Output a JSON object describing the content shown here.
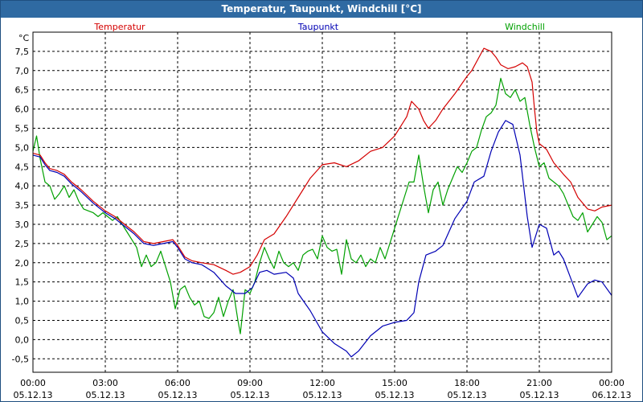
{
  "window": {
    "title": "Temperatur, Taupunkt, Windchill [°C]"
  },
  "colors": {
    "titlebar": "#2f6aa2",
    "temperature": "#d40000",
    "dewpoint": "#0000b4",
    "windchill": "#00a000",
    "grid": "#000000"
  },
  "chart_data": {
    "type": "line",
    "unit_label": "°C",
    "ylim": [
      -0.85,
      8.0
    ],
    "y_ticks": [
      "7,5",
      "7,0",
      "6,5",
      "6,0",
      "5,5",
      "5,0",
      "4,5",
      "4,0",
      "3,5",
      "3,0",
      "2,5",
      "2,0",
      "1,5",
      "1,0",
      "0,5",
      "0,0",
      "-0,5"
    ],
    "y_tick_values": [
      7.5,
      7.0,
      6.5,
      6.0,
      5.5,
      5.0,
      4.5,
      4.0,
      3.5,
      3.0,
      2.5,
      2.0,
      1.5,
      1.0,
      0.5,
      0.0,
      -0.5
    ],
    "x_ticks": [
      {
        "time": "00:00",
        "date": "05.12.13"
      },
      {
        "time": "03:00",
        "date": "05.12.13"
      },
      {
        "time": "06:00",
        "date": "05.12.13"
      },
      {
        "time": "09:00",
        "date": "05.12.13"
      },
      {
        "time": "12:00",
        "date": "05.12.13"
      },
      {
        "time": "15:00",
        "date": "05.12.13"
      },
      {
        "time": "18:00",
        "date": "05.12.13"
      },
      {
        "time": "21:00",
        "date": "05.12.13"
      },
      {
        "time": "00:00",
        "date": "06.12.13"
      }
    ],
    "x_tick_hours": [
      0,
      3,
      6,
      9,
      12,
      15,
      18,
      21,
      24
    ],
    "xlim_hours": [
      0,
      24
    ],
    "grid": true,
    "series": [
      {
        "name": "Temperatur",
        "color": "#d40000",
        "points": [
          [
            0.0,
            4.85
          ],
          [
            0.3,
            4.8
          ],
          [
            0.5,
            4.6
          ],
          [
            0.7,
            4.45
          ],
          [
            1.0,
            4.4
          ],
          [
            1.3,
            4.3
          ],
          [
            1.6,
            4.1
          ],
          [
            2.0,
            3.9
          ],
          [
            2.5,
            3.6
          ],
          [
            3.0,
            3.35
          ],
          [
            3.4,
            3.2
          ],
          [
            3.8,
            3.0
          ],
          [
            4.2,
            2.8
          ],
          [
            4.6,
            2.55
          ],
          [
            5.0,
            2.5
          ],
          [
            5.4,
            2.55
          ],
          [
            5.8,
            2.6
          ],
          [
            6.0,
            2.45
          ],
          [
            6.3,
            2.15
          ],
          [
            6.6,
            2.05
          ],
          [
            7.0,
            2.0
          ],
          [
            7.5,
            1.95
          ],
          [
            8.0,
            1.8
          ],
          [
            8.3,
            1.7
          ],
          [
            8.6,
            1.75
          ],
          [
            9.0,
            1.9
          ],
          [
            9.3,
            2.2
          ],
          [
            9.6,
            2.6
          ],
          [
            10.0,
            2.75
          ],
          [
            10.5,
            3.2
          ],
          [
            11.0,
            3.7
          ],
          [
            11.5,
            4.2
          ],
          [
            12.0,
            4.55
          ],
          [
            12.5,
            4.6
          ],
          [
            13.0,
            4.5
          ],
          [
            13.5,
            4.65
          ],
          [
            14.0,
            4.9
          ],
          [
            14.5,
            5.0
          ],
          [
            15.0,
            5.3
          ],
          [
            15.5,
            5.8
          ],
          [
            15.7,
            6.2
          ],
          [
            16.0,
            6.0
          ],
          [
            16.2,
            5.7
          ],
          [
            16.4,
            5.5
          ],
          [
            16.7,
            5.7
          ],
          [
            17.0,
            6.0
          ],
          [
            17.5,
            6.4
          ],
          [
            18.0,
            6.85
          ],
          [
            18.2,
            7.0
          ],
          [
            18.5,
            7.35
          ],
          [
            18.7,
            7.58
          ],
          [
            19.0,
            7.5
          ],
          [
            19.2,
            7.35
          ],
          [
            19.4,
            7.15
          ],
          [
            19.7,
            7.05
          ],
          [
            20.0,
            7.1
          ],
          [
            20.3,
            7.2
          ],
          [
            20.5,
            7.1
          ],
          [
            20.7,
            6.7
          ],
          [
            20.8,
            6.0
          ],
          [
            20.9,
            5.4
          ],
          [
            21.0,
            5.1
          ],
          [
            21.3,
            4.95
          ],
          [
            21.6,
            4.6
          ],
          [
            22.0,
            4.3
          ],
          [
            22.3,
            4.1
          ],
          [
            22.6,
            3.7
          ],
          [
            23.0,
            3.4
          ],
          [
            23.3,
            3.35
          ],
          [
            23.6,
            3.45
          ],
          [
            24.0,
            3.5
          ]
        ]
      },
      {
        "name": "Taupunkt",
        "color": "#0000b4",
        "points": [
          [
            0.0,
            4.8
          ],
          [
            0.3,
            4.75
          ],
          [
            0.5,
            4.55
          ],
          [
            0.7,
            4.4
          ],
          [
            1.0,
            4.35
          ],
          [
            1.3,
            4.25
          ],
          [
            1.6,
            4.05
          ],
          [
            2.0,
            3.85
          ],
          [
            2.5,
            3.55
          ],
          [
            3.0,
            3.3
          ],
          [
            3.4,
            3.15
          ],
          [
            3.8,
            2.95
          ],
          [
            4.2,
            2.75
          ],
          [
            4.6,
            2.5
          ],
          [
            5.0,
            2.45
          ],
          [
            5.4,
            2.5
          ],
          [
            5.8,
            2.55
          ],
          [
            6.0,
            2.4
          ],
          [
            6.3,
            2.1
          ],
          [
            6.6,
            2.0
          ],
          [
            7.0,
            1.95
          ],
          [
            7.5,
            1.75
          ],
          [
            8.0,
            1.4
          ],
          [
            8.4,
            1.2
          ],
          [
            8.8,
            1.2
          ],
          [
            9.1,
            1.35
          ],
          [
            9.4,
            1.75
          ],
          [
            9.7,
            1.8
          ],
          [
            10.0,
            1.7
          ],
          [
            10.5,
            1.75
          ],
          [
            10.8,
            1.6
          ],
          [
            11.0,
            1.2
          ],
          [
            11.5,
            0.75
          ],
          [
            12.0,
            0.2
          ],
          [
            12.5,
            -0.1
          ],
          [
            13.0,
            -0.3
          ],
          [
            13.2,
            -0.45
          ],
          [
            13.5,
            -0.3
          ],
          [
            14.0,
            0.1
          ],
          [
            14.5,
            0.35
          ],
          [
            15.0,
            0.45
          ],
          [
            15.5,
            0.5
          ],
          [
            15.8,
            0.7
          ],
          [
            16.0,
            1.5
          ],
          [
            16.3,
            2.2
          ],
          [
            16.7,
            2.3
          ],
          [
            17.0,
            2.45
          ],
          [
            17.5,
            3.15
          ],
          [
            18.0,
            3.6
          ],
          [
            18.3,
            4.1
          ],
          [
            18.7,
            4.25
          ],
          [
            19.0,
            4.9
          ],
          [
            19.3,
            5.4
          ],
          [
            19.6,
            5.7
          ],
          [
            19.9,
            5.6
          ],
          [
            20.2,
            4.8
          ],
          [
            20.5,
            3.2
          ],
          [
            20.7,
            2.4
          ],
          [
            21.0,
            3.0
          ],
          [
            21.3,
            2.9
          ],
          [
            21.6,
            2.2
          ],
          [
            21.8,
            2.3
          ],
          [
            22.0,
            2.1
          ],
          [
            22.3,
            1.6
          ],
          [
            22.6,
            1.1
          ],
          [
            23.0,
            1.45
          ],
          [
            23.3,
            1.55
          ],
          [
            23.6,
            1.5
          ],
          [
            24.0,
            1.15
          ]
        ]
      },
      {
        "name": "Windchill",
        "color": "#00a000",
        "points": [
          [
            0.0,
            4.9
          ],
          [
            0.15,
            5.3
          ],
          [
            0.3,
            4.7
          ],
          [
            0.5,
            4.1
          ],
          [
            0.7,
            4.0
          ],
          [
            0.9,
            3.65
          ],
          [
            1.1,
            3.8
          ],
          [
            1.3,
            4.0
          ],
          [
            1.5,
            3.7
          ],
          [
            1.7,
            3.9
          ],
          [
            1.9,
            3.6
          ],
          [
            2.1,
            3.4
          ],
          [
            2.3,
            3.35
          ],
          [
            2.5,
            3.3
          ],
          [
            2.7,
            3.2
          ],
          [
            2.9,
            3.3
          ],
          [
            3.1,
            3.2
          ],
          [
            3.3,
            3.1
          ],
          [
            3.5,
            3.2
          ],
          [
            3.7,
            3.0
          ],
          [
            3.9,
            2.8
          ],
          [
            4.1,
            2.6
          ],
          [
            4.3,
            2.4
          ],
          [
            4.5,
            1.9
          ],
          [
            4.7,
            2.2
          ],
          [
            4.9,
            1.9
          ],
          [
            5.1,
            2.0
          ],
          [
            5.3,
            2.3
          ],
          [
            5.5,
            1.9
          ],
          [
            5.7,
            1.5
          ],
          [
            5.9,
            0.8
          ],
          [
            6.1,
            1.3
          ],
          [
            6.3,
            1.4
          ],
          [
            6.5,
            1.1
          ],
          [
            6.7,
            0.9
          ],
          [
            6.9,
            1.0
          ],
          [
            7.1,
            0.6
          ],
          [
            7.3,
            0.55
          ],
          [
            7.5,
            0.7
          ],
          [
            7.7,
            1.1
          ],
          [
            7.9,
            0.6
          ],
          [
            8.1,
            1.0
          ],
          [
            8.3,
            1.3
          ],
          [
            8.5,
            0.5
          ],
          [
            8.6,
            0.15
          ],
          [
            8.8,
            1.3
          ],
          [
            9.0,
            1.2
          ],
          [
            9.2,
            1.5
          ],
          [
            9.4,
            2.0
          ],
          [
            9.6,
            2.4
          ],
          [
            9.8,
            2.1
          ],
          [
            10.0,
            1.85
          ],
          [
            10.2,
            2.3
          ],
          [
            10.4,
            2.0
          ],
          [
            10.6,
            1.9
          ],
          [
            10.8,
            2.0
          ],
          [
            11.0,
            1.8
          ],
          [
            11.2,
            2.2
          ],
          [
            11.4,
            2.3
          ],
          [
            11.6,
            2.35
          ],
          [
            11.8,
            2.1
          ],
          [
            12.0,
            2.7
          ],
          [
            12.2,
            2.4
          ],
          [
            12.4,
            2.3
          ],
          [
            12.6,
            2.35
          ],
          [
            12.8,
            1.7
          ],
          [
            13.0,
            2.6
          ],
          [
            13.2,
            2.1
          ],
          [
            13.4,
            2.0
          ],
          [
            13.6,
            2.2
          ],
          [
            13.8,
            1.9
          ],
          [
            14.0,
            2.1
          ],
          [
            14.2,
            2.0
          ],
          [
            14.4,
            2.4
          ],
          [
            14.6,
            2.1
          ],
          [
            14.8,
            2.5
          ],
          [
            15.0,
            2.9
          ],
          [
            15.2,
            3.3
          ],
          [
            15.4,
            3.7
          ],
          [
            15.6,
            4.1
          ],
          [
            15.8,
            4.1
          ],
          [
            16.0,
            4.8
          ],
          [
            16.2,
            4.0
          ],
          [
            16.4,
            3.3
          ],
          [
            16.6,
            3.9
          ],
          [
            16.8,
            4.1
          ],
          [
            17.0,
            3.5
          ],
          [
            17.2,
            3.9
          ],
          [
            17.4,
            4.2
          ],
          [
            17.6,
            4.5
          ],
          [
            17.8,
            4.35
          ],
          [
            18.0,
            4.6
          ],
          [
            18.2,
            4.9
          ],
          [
            18.4,
            5.0
          ],
          [
            18.6,
            5.45
          ],
          [
            18.8,
            5.8
          ],
          [
            19.0,
            5.9
          ],
          [
            19.2,
            6.1
          ],
          [
            19.4,
            6.8
          ],
          [
            19.6,
            6.4
          ],
          [
            19.8,
            6.3
          ],
          [
            20.0,
            6.5
          ],
          [
            20.2,
            6.2
          ],
          [
            20.4,
            6.3
          ],
          [
            20.6,
            5.6
          ],
          [
            20.8,
            5.0
          ],
          [
            21.0,
            4.5
          ],
          [
            21.2,
            4.6
          ],
          [
            21.4,
            4.2
          ],
          [
            21.6,
            4.1
          ],
          [
            21.8,
            4.0
          ],
          [
            22.0,
            3.8
          ],
          [
            22.2,
            3.5
          ],
          [
            22.4,
            3.2
          ],
          [
            22.6,
            3.1
          ],
          [
            22.8,
            3.3
          ],
          [
            23.0,
            2.8
          ],
          [
            23.2,
            3.0
          ],
          [
            23.4,
            3.2
          ],
          [
            23.6,
            3.05
          ],
          [
            23.8,
            2.6
          ],
          [
            24.0,
            2.7
          ]
        ]
      }
    ]
  }
}
